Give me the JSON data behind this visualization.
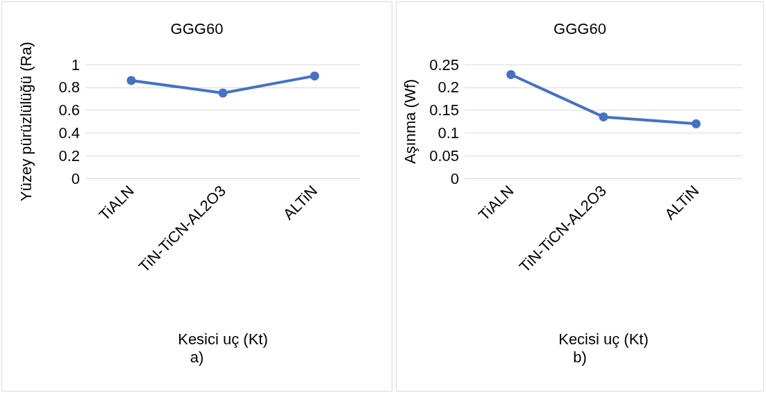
{
  "chart_data": [
    {
      "type": "line",
      "title": "GGG60",
      "xlabel": "Kesici uç (Kt)",
      "ylabel": "Yüzey pürüzlülüğü (Ra)",
      "categories": [
        "TiALN",
        "TiN-TiCN-AL2O3",
        "ALTiN"
      ],
      "values": [
        0.86,
        0.75,
        0.9
      ],
      "color": "#4472c4",
      "ylim": [
        0,
        1
      ],
      "yticks": [
        0,
        0.2,
        0.4,
        0.6,
        0.8,
        1
      ],
      "grid": "y",
      "marker": "circle",
      "annotations": [
        "a)"
      ]
    },
    {
      "type": "line",
      "title": "GGG60",
      "xlabel": "Kecisi uç (Kt)",
      "ylabel": "Aşınma (Wf)",
      "categories": [
        "TiALN",
        "TiN-TiCN-AL2O3",
        "ALTiN"
      ],
      "values": [
        0.228,
        0.135,
        0.12
      ],
      "color": "#4472c4",
      "ylim": [
        0,
        0.25
      ],
      "yticks": [
        0,
        0.05,
        0.1,
        0.15,
        0.2,
        0.25
      ],
      "grid": "y",
      "marker": "circle",
      "annotations": [
        "b)"
      ]
    }
  ]
}
